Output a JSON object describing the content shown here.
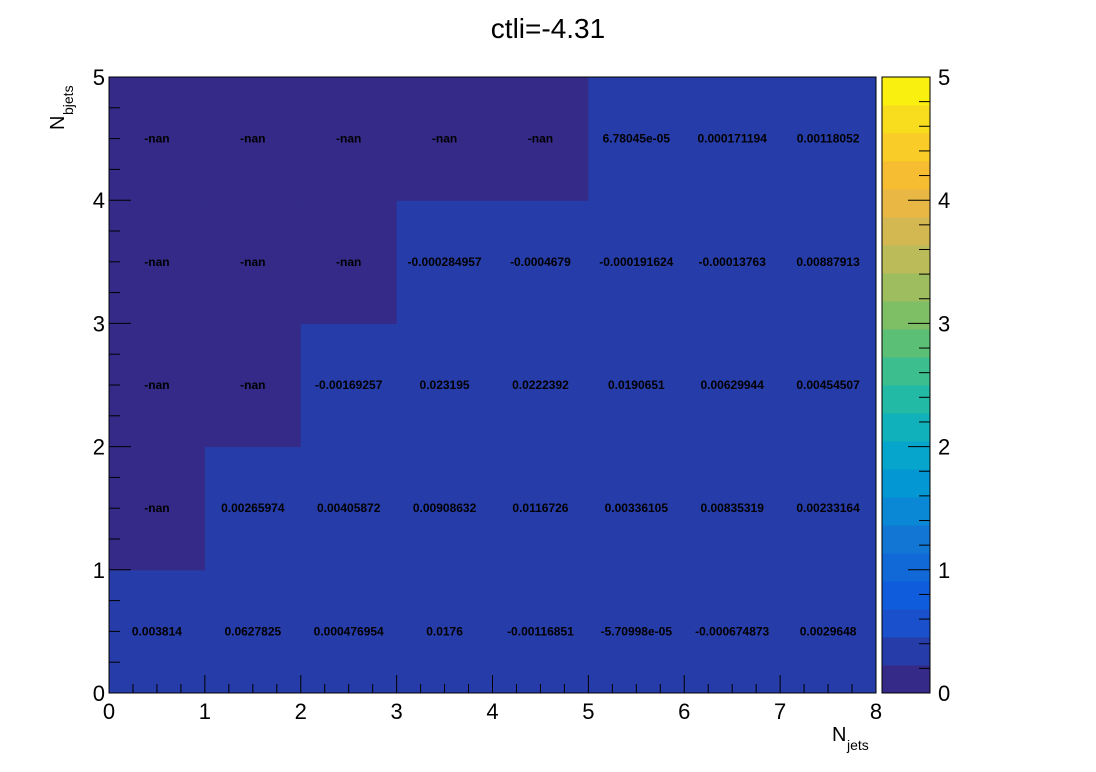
{
  "colors": {
    "nan_cell": "#352a87",
    "value_cell": "#263ca9",
    "palette": [
      "#352a87",
      "#263ca9",
      "#1a50cb",
      "#0f5cdd",
      "#1169d7",
      "#1277d4",
      "#0a87d5",
      "#0397d4",
      "#06a5cb",
      "#10b1ba",
      "#22b9a5",
      "#3cbe8e",
      "#5cbf76",
      "#7ebf66",
      "#9dbd5e",
      "#bbbb5a",
      "#d3b852",
      "#e8b744",
      "#f6bd33",
      "#f9cc28",
      "#f7dd1e",
      "#f9f00f"
    ]
  },
  "chart_data": {
    "type": "heatmap",
    "title": "ctli=-4.31",
    "xlabel": "N",
    "xlabel_sub": "jets",
    "ylabel": "N",
    "ylabel_sub": "bjets",
    "xlim": [
      0,
      8
    ],
    "ylim": [
      0,
      5
    ],
    "zlim": [
      0,
      5
    ],
    "x_ticks": [
      "0",
      "1",
      "2",
      "3",
      "4",
      "5",
      "6",
      "7",
      "8"
    ],
    "y_ticks": [
      "0",
      "1",
      "2",
      "3",
      "4",
      "5"
    ],
    "z_ticks": [
      "0",
      "1",
      "2",
      "3",
      "4",
      "5"
    ],
    "x_bins": [
      0,
      1,
      2,
      3,
      4,
      5,
      6,
      7,
      8
    ],
    "y_bins": [
      0,
      1,
      2,
      3,
      4,
      5
    ],
    "cells": [
      [
        "0.003814",
        "0.0627825",
        "0.000476954",
        "0.0176",
        "-0.00116851",
        "-5.70998e-05",
        "-0.000674873",
        "0.0029648"
      ],
      [
        "-nan",
        "0.00265974",
        "0.00405872",
        "0.00908632",
        "0.0116726",
        "0.00336105",
        "0.00835319",
        "0.00233164"
      ],
      [
        "-nan",
        "-nan",
        "-0.00169257",
        "0.023195",
        "0.0222392",
        "0.0190651",
        "0.00629944",
        "0.00454507"
      ],
      [
        "-nan",
        "-nan",
        "-nan",
        "-0.000284957",
        "-0.0004679",
        "-0.000191624",
        "-0.00013763",
        "0.00887913"
      ],
      [
        "-nan",
        "-nan",
        "-nan",
        "-nan",
        "-nan",
        "6.78045e-05",
        "0.000171194",
        "0.00118052"
      ]
    ]
  }
}
